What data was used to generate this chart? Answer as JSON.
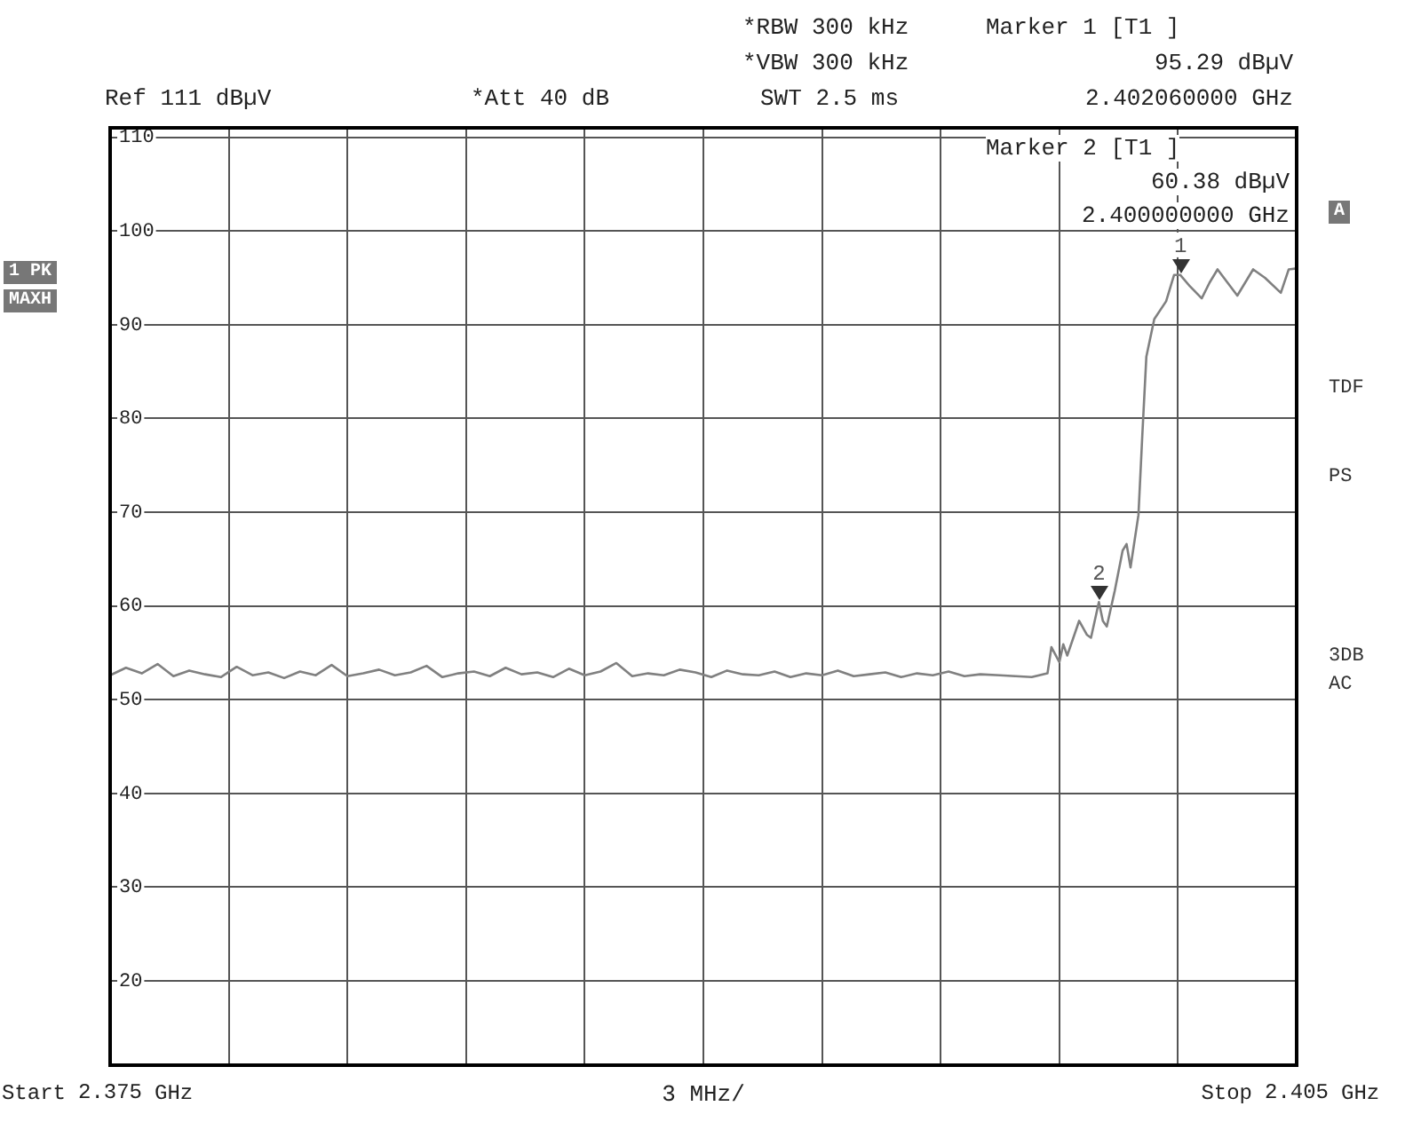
{
  "chart_data": {
    "type": "line",
    "xlabel": "3 MHz/",
    "x": [
      2.375,
      2.3754,
      2.3758,
      2.3762,
      2.3766,
      2.377,
      2.3774,
      2.3778,
      2.3782,
      2.3786,
      2.379,
      2.3794,
      2.3798,
      2.3802,
      2.3806,
      2.381,
      2.3814,
      2.3818,
      2.3822,
      2.3826,
      2.383,
      2.3834,
      2.3838,
      2.3842,
      2.3846,
      2.385,
      2.3854,
      2.3858,
      2.3862,
      2.3866,
      2.387,
      2.3874,
      2.3878,
      2.3882,
      2.3886,
      2.389,
      2.3894,
      2.3898,
      2.3902,
      2.3906,
      2.391,
      2.3914,
      2.3918,
      2.3922,
      2.3926,
      2.393,
      2.3934,
      2.3938,
      2.3942,
      2.3946,
      2.395,
      2.3954,
      2.3958,
      2.3962,
      2.3966,
      2.397,
      2.3975,
      2.3983,
      2.3987,
      2.3988,
      2.399,
      2.3991,
      2.3992,
      2.3995,
      2.3997,
      2.3998,
      2.4,
      2.4001,
      2.4002,
      2.4004,
      2.4006,
      2.4007,
      2.4008,
      2.401,
      2.4011,
      2.4012,
      2.4014,
      2.4017,
      2.4019,
      2.40206,
      2.4023,
      2.4026,
      2.4028,
      2.403,
      2.4035,
      2.4039,
      2.4042,
      2.4046,
      2.4048,
      2.405
    ],
    "series": [
      {
        "color": "#808080",
        "values": [
          52.6,
          53.4,
          52.8,
          53.8,
          52.5,
          53.1,
          52.7,
          52.4,
          53.5,
          52.6,
          52.9,
          52.3,
          53.0,
          52.6,
          53.7,
          52.5,
          52.8,
          53.2,
          52.6,
          52.9,
          53.6,
          52.4,
          52.8,
          53.0,
          52.5,
          53.4,
          52.7,
          52.9,
          52.4,
          53.3,
          52.6,
          53.0,
          53.9,
          52.5,
          52.8,
          52.6,
          53.2,
          52.9,
          52.4,
          53.1,
          52.7,
          52.6,
          53.0,
          52.4,
          52.8,
          52.6,
          53.1,
          52.5,
          52.7,
          52.9,
          52.4,
          52.8,
          52.6,
          53.0,
          52.5,
          52.7,
          52.6,
          52.4,
          52.8,
          55.6,
          54.0,
          55.9,
          54.7,
          58.4,
          56.9,
          56.6,
          60.4,
          58.4,
          57.8,
          61.6,
          65.9,
          66.6,
          64.1,
          69.7,
          78.4,
          86.6,
          90.6,
          92.5,
          95.3,
          95.3,
          94.1,
          92.8,
          94.5,
          95.9,
          93.1,
          95.9,
          95.0,
          93.4,
          95.9,
          96.0
        ]
      }
    ],
    "xlim": [
      2.375,
      2.405
    ],
    "xticks": [
      2.375,
      {
        "value": 2.378,
        "label": null
      },
      {
        "value": 2.381,
        "label": null
      },
      {
        "value": 2.384,
        "label": null
      },
      {
        "value": 2.387,
        "label": null
      },
      {
        "value": 2.39,
        "label": null
      },
      {
        "value": 2.393,
        "label": null
      },
      {
        "value": 2.396,
        "label": null
      },
      {
        "value": 2.399,
        "label": null
      },
      {
        "value": 2.402,
        "label": null
      },
      2.405
    ],
    "ylim": [
      11,
      111
    ],
    "yticks": [
      20,
      30,
      40,
      50,
      60,
      70,
      80,
      90,
      100,
      110
    ],
    "grid": true,
    "marker": "none",
    "line_style": "solid",
    "annotations": [
      "Ref 111 dBµV",
      "*Att 40 dB",
      "*RBW 300 kHz",
      "*VBW 300 kHz",
      "SWT 2.5 ms",
      "Marker 1 [T1 ]",
      "95.29 dBµV",
      "2.402060000 GHz",
      "Marker 2 [T1 ]",
      "60.38 dBµV",
      "2.400000000 GHz",
      "1 PK",
      "MAXH",
      "A",
      "TDF",
      "PS",
      "3DB",
      "AC",
      "Start",
      "GHz",
      "Stop",
      "GHz",
      {
        "text": "1",
        "x": 2.40206,
        "y": 95.29
      },
      {
        "text": "2",
        "x": 2.4,
        "y": 60.38
      }
    ]
  }
}
